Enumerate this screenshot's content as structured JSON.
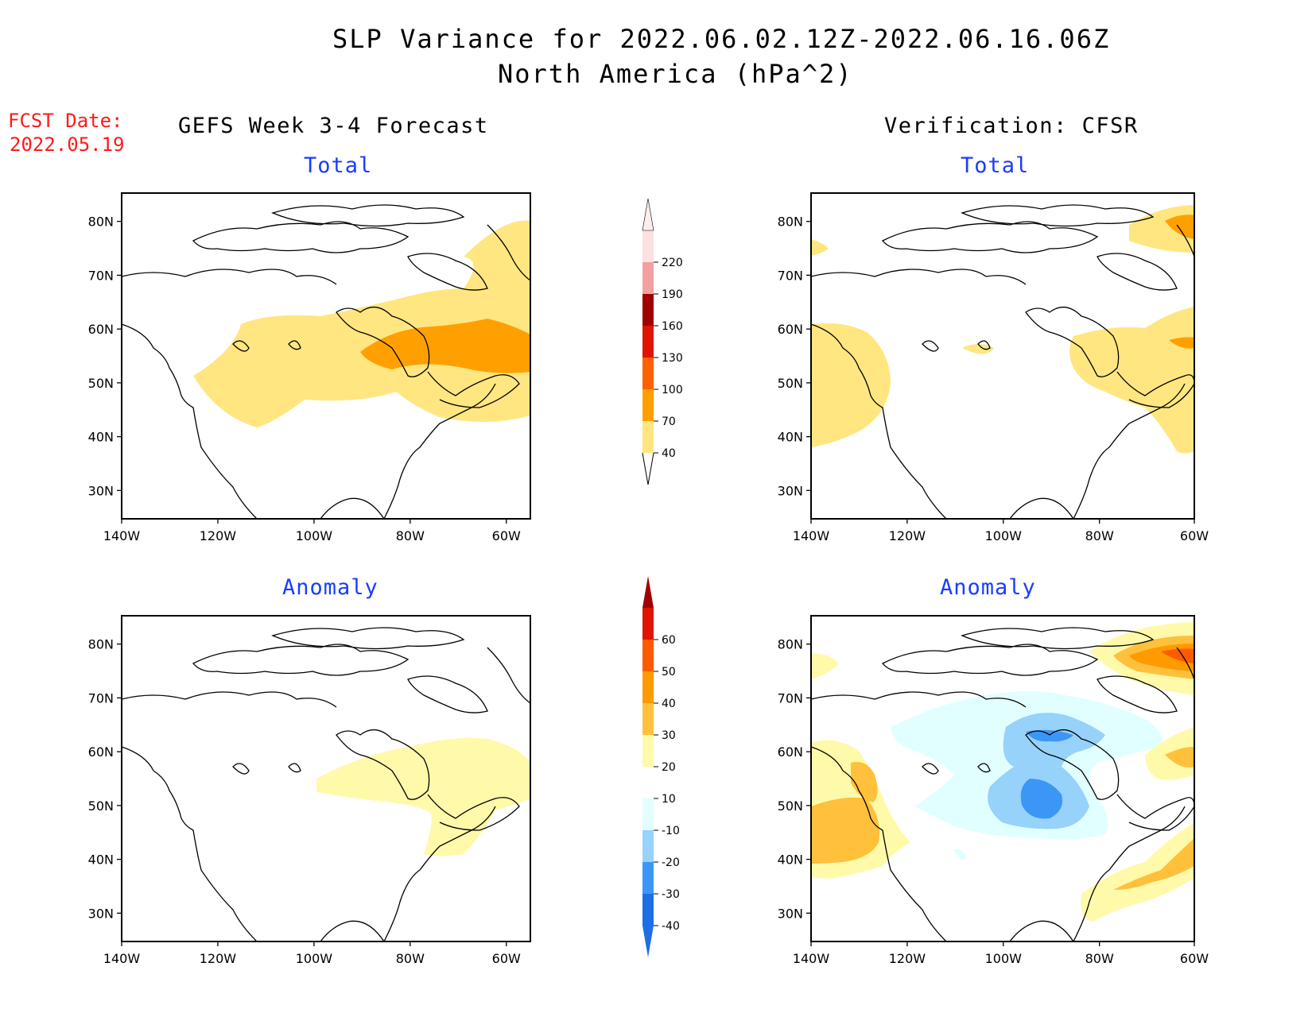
{
  "header": {
    "title_line1": "SLP Variance for 2022.06.02.12Z-2022.06.16.06Z",
    "title_line2": "North America (hPa^2)",
    "fcst_label": "FCST Date:",
    "fcst_date": "2022.05.19"
  },
  "columns": {
    "left": "GEFS Week 3-4 Forecast",
    "right": "Verification: CFSR"
  },
  "panels": [
    {
      "id": "gefs-total",
      "subtitle": "Total"
    },
    {
      "id": "cfsr-total",
      "subtitle": "Total"
    },
    {
      "id": "gefs-anomaly",
      "subtitle": "Anomaly"
    },
    {
      "id": "cfsr-anomaly",
      "subtitle": "Anomaly"
    }
  ],
  "axes": {
    "lon_ticks": [
      "140W",
      "120W",
      "100W",
      "80W",
      "60W"
    ],
    "lat_ticks": [
      "80N",
      "70N",
      "60N",
      "50N",
      "40N",
      "30N"
    ]
  },
  "colorbars": {
    "total": {
      "labels": [
        "40",
        "70",
        "100",
        "130",
        "160",
        "190",
        "220"
      ],
      "colors": [
        "#ffe680",
        "#ffa000",
        "#ff6000",
        "#e01400",
        "#a00000",
        "#f4a0a0",
        "#fde0e0"
      ]
    },
    "anomaly": {
      "labels": [
        "-40",
        "-30",
        "-20",
        "-10",
        "10",
        "20",
        "30",
        "40",
        "50",
        "60"
      ],
      "colors": [
        "#1e6ee6",
        "#3c96f5",
        "#96d2fa",
        "#e1ffff",
        "#ffffff",
        "#fffaaa",
        "#ffc03c",
        "#ff9a00",
        "#ff5a00",
        "#e01400",
        "#a00000"
      ]
    }
  },
  "colors": {
    "c40": "#ffe680",
    "c70": "#ffa000",
    "a10": "#fffaaa",
    "a20": "#ffc03c",
    "a30": "#ff9a00",
    "a40": "#ff5a00",
    "am10": "#e1ffff",
    "am20": "#96d2fa",
    "am30": "#3c96f5",
    "title_blue": "#1a3cff",
    "fcst_red": "#ff1a1a"
  }
}
